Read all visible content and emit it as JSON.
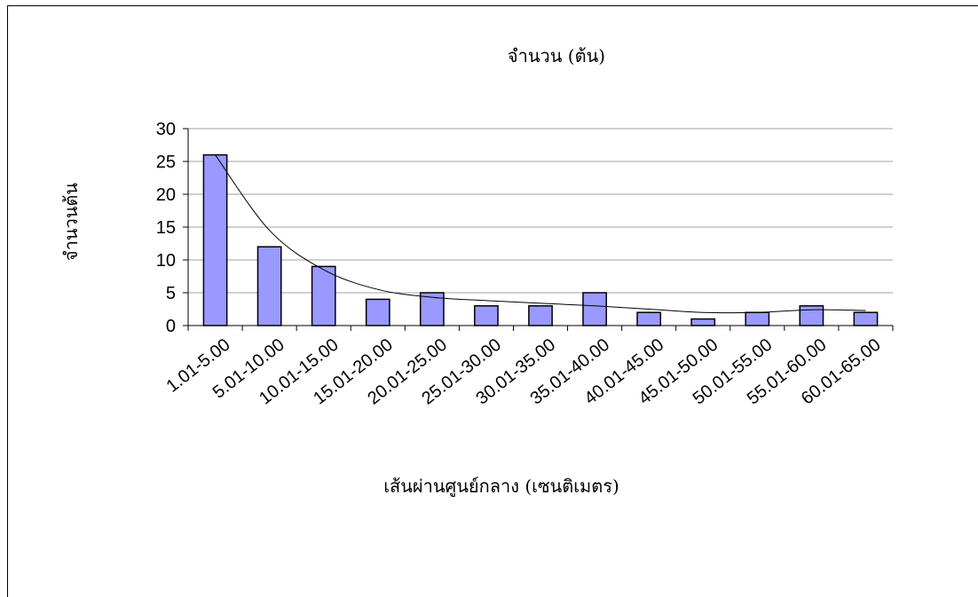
{
  "chart_data": {
    "type": "bar",
    "title": "จำนวน (ต้น)",
    "xlabel": "เส้นผ่านศูนย์กลาง (เซนติเมตร)",
    "ylabel": "จำนวนต้น",
    "categories": [
      "1.01-5.00",
      "5.01-10.00",
      "10.01-15.00",
      "15.01-20.00",
      "20.01-25.00",
      "25.01-30.00",
      "30.01-35.00",
      "35.01-40.00",
      "40.01-45.00",
      "45.01-50.00",
      "50.01-55.00",
      "55.01-60.00",
      "60.01-65.00"
    ],
    "values": [
      26,
      12,
      9,
      4,
      5,
      3,
      3,
      5,
      2,
      1,
      2,
      3,
      2
    ],
    "trendline": [
      26,
      14.5,
      8.5,
      5.5,
      4.3,
      3.8,
      3.4,
      3.0,
      2.5,
      2.0,
      2.0,
      2.4,
      2.3
    ],
    "ylim": [
      0,
      30
    ],
    "yticks": [
      0,
      5,
      10,
      15,
      20,
      25,
      30
    ],
    "grid": true,
    "colors": {
      "bar_fill": "#9999ff",
      "bar_stroke": "#000000",
      "grid": "#a0a0a0",
      "trendline": "#000000"
    }
  }
}
